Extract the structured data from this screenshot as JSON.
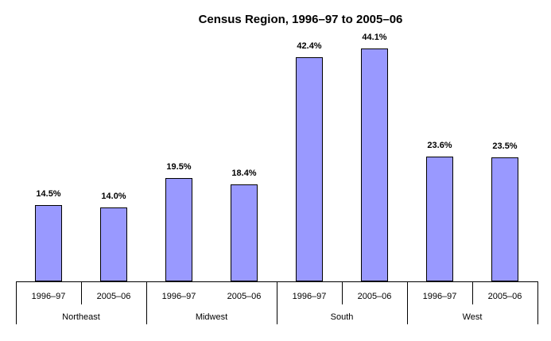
{
  "chart_data": {
    "type": "bar",
    "title": "Census Region, 1996–97 to 2005–06",
    "categories": [
      "1996–97",
      "2005–06"
    ],
    "groups": [
      {
        "name": "Northeast",
        "bars": [
          {
            "year": "1996–97",
            "value": 14.5,
            "label": "14.5%"
          },
          {
            "year": "2005–06",
            "value": 14.0,
            "label": "14.0%"
          }
        ]
      },
      {
        "name": "Midwest",
        "bars": [
          {
            "year": "1996–97",
            "value": 19.5,
            "label": "19.5%"
          },
          {
            "year": "2005–06",
            "value": 18.4,
            "label": "18.4%"
          }
        ]
      },
      {
        "name": "South",
        "bars": [
          {
            "year": "1996–97",
            "value": 42.4,
            "label": "42.4%"
          },
          {
            "year": "2005–06",
            "value": 44.1,
            "label": "44.1%"
          }
        ]
      },
      {
        "name": "West",
        "bars": [
          {
            "year": "1996–97",
            "value": 23.6,
            "label": "23.6%"
          },
          {
            "year": "2005–06",
            "value": 23.5,
            "label": "23.5%"
          }
        ]
      }
    ],
    "xlabel": "",
    "ylabel": "",
    "ylim": [
      0,
      50
    ],
    "grid": false,
    "legend": false,
    "value_suffix": "%",
    "colors": {
      "bar_fill": "#9999FF",
      "bar_border": "#000000",
      "axis": "#000000",
      "text": "#000000",
      "background": "#FFFFFF"
    }
  }
}
